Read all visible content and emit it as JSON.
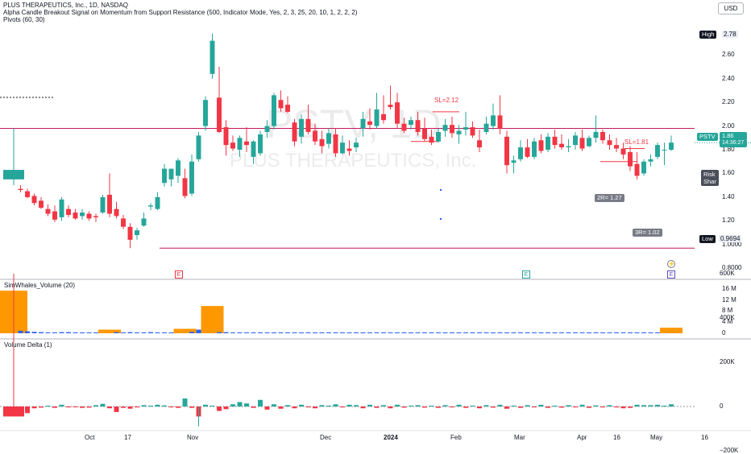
{
  "header": {
    "symbol_line": "PLUS THERAPEUTICS, Inc., 1D, NASDAQ",
    "indicator_line": "Alpha Candle Breakout Signal on Momentum from Support Resistance (500, Indicator Mode, Yes, 2, 3, 25, 20, 10, 1, 2, 2, 2)",
    "pivots_line": "Pivots (60, 30)",
    "currency": "USD"
  },
  "watermark": {
    "ticker": "PSTV, 1D",
    "company": "PLUS THERAPEUTICS, Inc."
  },
  "price_axis": {
    "ticks": [
      "2.60",
      "2.40",
      "2.20",
      "2.00",
      "1.80",
      "1.60",
      "1.40",
      "1.20",
      "1.0000",
      "0.8000"
    ],
    "high_label": "High",
    "high_value": "2.78",
    "low_label": "Low",
    "low_value": "0.9694",
    "current_ticker": "PSTV",
    "current_price": "1.86",
    "countdown": "14:36:27",
    "accent": "#26a69a"
  },
  "annotations": {
    "sl_1": "SL=2.12",
    "sl_2": "SL=1.81",
    "target_2r": "2R= 1.27",
    "target_3r": "3R= 1.02",
    "risk_line1": "Risk",
    "risk_line2": "Shar",
    "earnings_marker": "E",
    "upcoming_marker": "E"
  },
  "volume_pane": {
    "title": "SimWhales_Volume (20)",
    "ticks": [
      "16 M",
      "12 M",
      "8 M",
      "4 M",
      "0"
    ],
    "colors": {
      "whale": "#ff9800",
      "normal": "#2962ff"
    }
  },
  "delta_pane": {
    "title": "Volume Delta (1)",
    "ticks": [
      "600K",
      "400K",
      "200K",
      "0",
      "−200K"
    ]
  },
  "time_axis": {
    "labels": [
      "Oct",
      "17",
      "Nov",
      "Dec",
      "2024",
      "Feb",
      "Mar",
      "Apr",
      "16",
      "May",
      "16"
    ]
  },
  "chart_data": {
    "type": "candlestick",
    "y_range": [
      0.72,
      2.86
    ],
    "candles": [
      {
        "o": 1.55,
        "h": 1.98,
        "l": 1.5,
        "c": 1.63
      },
      {
        "o": 1.47,
        "h": 1.5,
        "l": 1.44,
        "c": 1.46
      },
      {
        "o": 1.45,
        "h": 1.47,
        "l": 1.39,
        "c": 1.4
      },
      {
        "o": 1.41,
        "h": 1.43,
        "l": 1.33,
        "c": 1.35
      },
      {
        "o": 1.37,
        "h": 1.4,
        "l": 1.3,
        "c": 1.31
      },
      {
        "o": 1.3,
        "h": 1.34,
        "l": 1.24,
        "c": 1.26
      },
      {
        "o": 1.28,
        "h": 1.33,
        "l": 1.19,
        "c": 1.21
      },
      {
        "o": 1.23,
        "h": 1.4,
        "l": 1.2,
        "c": 1.38
      },
      {
        "o": 1.3,
        "h": 1.33,
        "l": 1.23,
        "c": 1.25
      },
      {
        "o": 1.27,
        "h": 1.3,
        "l": 1.21,
        "c": 1.22
      },
      {
        "o": 1.24,
        "h": 1.3,
        "l": 1.21,
        "c": 1.27
      },
      {
        "o": 1.26,
        "h": 1.28,
        "l": 1.2,
        "c": 1.22
      },
      {
        "o": 1.24,
        "h": 1.26,
        "l": 1.19,
        "c": 1.23
      },
      {
        "o": 1.27,
        "h": 1.42,
        "l": 1.26,
        "c": 1.4
      },
      {
        "o": 1.42,
        "h": 1.6,
        "l": 1.23,
        "c": 1.26
      },
      {
        "o": 1.3,
        "h": 1.36,
        "l": 1.22,
        "c": 1.24
      },
      {
        "o": 1.22,
        "h": 1.25,
        "l": 1.13,
        "c": 1.15
      },
      {
        "o": 1.15,
        "h": 1.18,
        "l": 0.97,
        "c": 1.04
      },
      {
        "o": 1.08,
        "h": 1.14,
        "l": 1.04,
        "c": 1.12
      },
      {
        "o": 1.16,
        "h": 1.27,
        "l": 1.15,
        "c": 1.22
      },
      {
        "o": 1.32,
        "h": 1.35,
        "l": 1.29,
        "c": 1.33
      },
      {
        "o": 1.3,
        "h": 1.44,
        "l": 1.29,
        "c": 1.4
      },
      {
        "o": 1.52,
        "h": 1.68,
        "l": 1.49,
        "c": 1.64
      },
      {
        "o": 1.55,
        "h": 1.64,
        "l": 1.49,
        "c": 1.64
      },
      {
        "o": 1.58,
        "h": 1.73,
        "l": 1.52,
        "c": 1.71
      },
      {
        "o": 1.56,
        "h": 1.64,
        "l": 1.39,
        "c": 1.41
      },
      {
        "o": 1.43,
        "h": 1.76,
        "l": 1.41,
        "c": 1.7
      },
      {
        "o": 1.72,
        "h": 1.95,
        "l": 1.7,
        "c": 1.92
      },
      {
        "o": 2.0,
        "h": 2.25,
        "l": 1.96,
        "c": 2.22
      },
      {
        "o": 2.44,
        "h": 2.78,
        "l": 2.4,
        "c": 2.72
      },
      {
        "o": 2.24,
        "h": 2.5,
        "l": 1.94,
        "c": 1.95
      },
      {
        "o": 1.99,
        "h": 2.05,
        "l": 1.75,
        "c": 1.84
      },
      {
        "o": 1.86,
        "h": 1.92,
        "l": 1.79,
        "c": 1.81
      },
      {
        "o": 1.8,
        "h": 1.92,
        "l": 1.74,
        "c": 1.9
      },
      {
        "o": 1.87,
        "h": 1.99,
        "l": 1.78,
        "c": 1.84
      },
      {
        "o": 1.74,
        "h": 1.88,
        "l": 1.68,
        "c": 1.87
      },
      {
        "o": 1.77,
        "h": 1.96,
        "l": 1.75,
        "c": 1.93
      },
      {
        "o": 1.95,
        "h": 2.05,
        "l": 1.9,
        "c": 2.0
      },
      {
        "o": 2.0,
        "h": 2.28,
        "l": 1.97,
        "c": 2.26
      },
      {
        "o": 2.22,
        "h": 2.3,
        "l": 2.12,
        "c": 2.15
      },
      {
        "o": 2.18,
        "h": 2.25,
        "l": 2.11,
        "c": 2.12
      },
      {
        "o": 2.03,
        "h": 2.06,
        "l": 1.83,
        "c": 1.87
      },
      {
        "o": 1.91,
        "h": 2.1,
        "l": 1.85,
        "c": 2.06
      },
      {
        "o": 2.06,
        "h": 2.18,
        "l": 1.93,
        "c": 1.95
      },
      {
        "o": 1.96,
        "h": 2.02,
        "l": 1.84,
        "c": 1.87
      },
      {
        "o": 1.89,
        "h": 1.96,
        "l": 1.77,
        "c": 1.83
      },
      {
        "o": 1.85,
        "h": 1.98,
        "l": 1.81,
        "c": 1.94
      },
      {
        "o": 1.93,
        "h": 1.98,
        "l": 1.74,
        "c": 1.77
      },
      {
        "o": 1.77,
        "h": 1.92,
        "l": 1.76,
        "c": 1.86
      },
      {
        "o": 1.81,
        "h": 1.88,
        "l": 1.75,
        "c": 1.79
      },
      {
        "o": 1.82,
        "h": 1.9,
        "l": 1.78,
        "c": 1.86
      },
      {
        "o": 1.98,
        "h": 2.12,
        "l": 1.91,
        "c": 2.06
      },
      {
        "o": 2.04,
        "h": 2.15,
        "l": 1.97,
        "c": 2.01
      },
      {
        "o": 2.0,
        "h": 2.28,
        "l": 1.98,
        "c": 2.14
      },
      {
        "o": 2.1,
        "h": 2.26,
        "l": 2.02,
        "c": 2.05
      },
      {
        "o": 2.18,
        "h": 2.34,
        "l": 2.14,
        "c": 2.16
      },
      {
        "o": 2.2,
        "h": 2.28,
        "l": 1.98,
        "c": 2.02
      },
      {
        "o": 2.02,
        "h": 2.07,
        "l": 1.94,
        "c": 1.96
      },
      {
        "o": 2.01,
        "h": 2.08,
        "l": 1.97,
        "c": 2.05
      },
      {
        "o": 2.05,
        "h": 2.12,
        "l": 1.92,
        "c": 1.95
      },
      {
        "o": 1.98,
        "h": 2.07,
        "l": 1.87,
        "c": 1.89
      },
      {
        "o": 1.91,
        "h": 1.97,
        "l": 1.84,
        "c": 1.86
      },
      {
        "o": 1.87,
        "h": 1.98,
        "l": 1.86,
        "c": 1.95
      },
      {
        "o": 1.96,
        "h": 2.06,
        "l": 1.91,
        "c": 2.01
      },
      {
        "o": 2.01,
        "h": 2.08,
        "l": 1.9,
        "c": 1.94
      },
      {
        "o": 1.93,
        "h": 2.01,
        "l": 1.85,
        "c": 1.96
      },
      {
        "o": 1.97,
        "h": 2.12,
        "l": 1.92,
        "c": 1.99
      },
      {
        "o": 1.99,
        "h": 2.04,
        "l": 1.9,
        "c": 1.92
      },
      {
        "o": 1.88,
        "h": 1.97,
        "l": 1.78,
        "c": 1.82
      },
      {
        "o": 1.95,
        "h": 2.08,
        "l": 1.93,
        "c": 2.02
      },
      {
        "o": 2.0,
        "h": 2.19,
        "l": 1.97,
        "c": 2.09
      },
      {
        "o": 2.09,
        "h": 2.26,
        "l": 1.93,
        "c": 1.98
      },
      {
        "o": 1.91,
        "h": 1.96,
        "l": 1.6,
        "c": 1.67
      },
      {
        "o": 1.69,
        "h": 1.75,
        "l": 1.6,
        "c": 1.71
      },
      {
        "o": 1.72,
        "h": 1.88,
        "l": 1.7,
        "c": 1.82
      },
      {
        "o": 1.82,
        "h": 1.89,
        "l": 1.73,
        "c": 1.74
      },
      {
        "o": 1.74,
        "h": 1.9,
        "l": 1.72,
        "c": 1.87
      },
      {
        "o": 1.88,
        "h": 1.93,
        "l": 1.77,
        "c": 1.79
      },
      {
        "o": 1.8,
        "h": 1.94,
        "l": 1.78,
        "c": 1.91
      },
      {
        "o": 1.91,
        "h": 1.97,
        "l": 1.81,
        "c": 1.84
      },
      {
        "o": 1.85,
        "h": 1.93,
        "l": 1.8,
        "c": 1.82
      },
      {
        "o": 1.82,
        "h": 1.89,
        "l": 1.78,
        "c": 1.83
      },
      {
        "o": 1.84,
        "h": 1.95,
        "l": 1.8,
        "c": 1.92
      },
      {
        "o": 1.9,
        "h": 1.97,
        "l": 1.79,
        "c": 1.81
      },
      {
        "o": 1.83,
        "h": 1.92,
        "l": 1.82,
        "c": 1.9
      },
      {
        "o": 1.9,
        "h": 2.09,
        "l": 1.86,
        "c": 1.95
      },
      {
        "o": 1.95,
        "h": 1.97,
        "l": 1.85,
        "c": 1.88
      },
      {
        "o": 1.88,
        "h": 1.93,
        "l": 1.8,
        "c": 1.84
      },
      {
        "o": 1.84,
        "h": 1.9,
        "l": 1.78,
        "c": 1.81
      },
      {
        "o": 1.81,
        "h": 1.86,
        "l": 1.72,
        "c": 1.76
      },
      {
        "o": 1.78,
        "h": 1.83,
        "l": 1.62,
        "c": 1.66
      },
      {
        "o": 1.68,
        "h": 1.78,
        "l": 1.55,
        "c": 1.58
      },
      {
        "o": 1.6,
        "h": 1.72,
        "l": 1.58,
        "c": 1.7
      },
      {
        "o": 1.7,
        "h": 1.76,
        "l": 1.66,
        "c": 1.72
      },
      {
        "o": 1.74,
        "h": 1.86,
        "l": 1.72,
        "c": 1.84
      },
      {
        "o": 1.8,
        "h": 1.86,
        "l": 1.67,
        "c": 1.8
      },
      {
        "o": 1.8,
        "h": 1.92,
        "l": 1.79,
        "c": 1.86
      }
    ],
    "volume_whale": [
      15.3,
      0.9,
      0.7,
      0.5,
      0.4,
      0.3,
      0.3,
      0.4,
      0.4,
      0.3,
      0.3,
      0.3,
      0.3,
      0.4,
      1.3,
      0.4,
      0.3,
      0.4,
      0.3,
      0.3,
      0.4,
      0.3,
      0.3,
      0.3,
      0.4,
      1.6,
      0.5,
      1.3,
      1.0,
      9.8,
      0.4,
      0.4,
      0.3,
      0.3,
      0.3,
      0.3,
      0.3,
      0.3,
      0.3,
      0.3,
      0.3,
      0.3,
      0.3,
      0.3,
      0.3,
      0.3,
      0.3,
      0.3,
      0.3,
      0.3,
      0.3,
      0.3,
      0.3,
      0.3,
      0.3,
      0.3,
      0.3,
      0.3,
      0.3,
      0.3,
      0.3,
      0.3,
      0.3,
      0.3,
      0.3,
      0.3,
      0.3,
      0.3,
      0.3,
      0.3,
      0.3,
      0.3,
      0.3,
      0.3,
      0.3,
      0.3,
      0.3,
      0.3,
      0.3,
      0.3,
      0.3,
      0.3,
      0.3,
      0.3,
      0.3,
      0.3,
      0.3,
      0.3,
      0.3,
      0.3,
      0.3,
      0.3,
      0.3,
      0.3,
      0.3,
      0.3,
      2.0
    ],
    "volume_whale_flags": [
      1,
      0,
      0,
      0,
      0,
      0,
      0,
      0,
      0,
      0,
      0,
      0,
      0,
      0,
      1,
      0,
      0,
      0,
      0,
      0,
      0,
      0,
      0,
      0,
      0,
      1,
      0,
      0,
      0,
      1,
      0,
      0,
      0,
      0,
      0,
      0,
      0,
      0,
      0,
      0,
      0,
      0,
      0,
      0,
      0,
      0,
      0,
      0,
      0,
      0,
      0,
      0,
      0,
      0,
      0,
      0,
      0,
      0,
      0,
      0,
      0,
      0,
      0,
      0,
      0,
      0,
      0,
      0,
      0,
      0,
      0,
      0,
      0,
      0,
      0,
      0,
      0,
      0,
      0,
      0,
      0,
      0,
      0,
      0,
      0,
      0,
      0,
      0,
      0,
      0,
      0,
      0,
      0,
      0,
      0,
      0,
      1
    ],
    "volume_delta_k": [
      -45,
      -10,
      -30,
      -8,
      -5,
      4,
      -6,
      8,
      -4,
      -3,
      -6,
      -5,
      6,
      12,
      -8,
      -25,
      -6,
      -10,
      -4,
      6,
      4,
      8,
      5,
      -4,
      -6,
      36,
      -6,
      -45,
      8,
      4,
      -20,
      -12,
      10,
      20,
      14,
      -6,
      30,
      -14,
      10,
      -10,
      6,
      -8,
      8,
      -4,
      -8,
      6,
      4,
      10,
      -4,
      8,
      6,
      -8,
      8,
      -6,
      6,
      -8,
      8,
      -5,
      4,
      6,
      -5,
      4,
      -6,
      6,
      -4,
      8,
      -6,
      4,
      -8,
      6,
      -5,
      8,
      -10,
      4,
      -6,
      6,
      -4,
      8,
      -6,
      4,
      -5,
      6,
      -4,
      8,
      -6,
      5,
      -4,
      6,
      -4,
      -8,
      -6,
      8,
      6,
      6,
      8,
      4,
      10
    ]
  }
}
